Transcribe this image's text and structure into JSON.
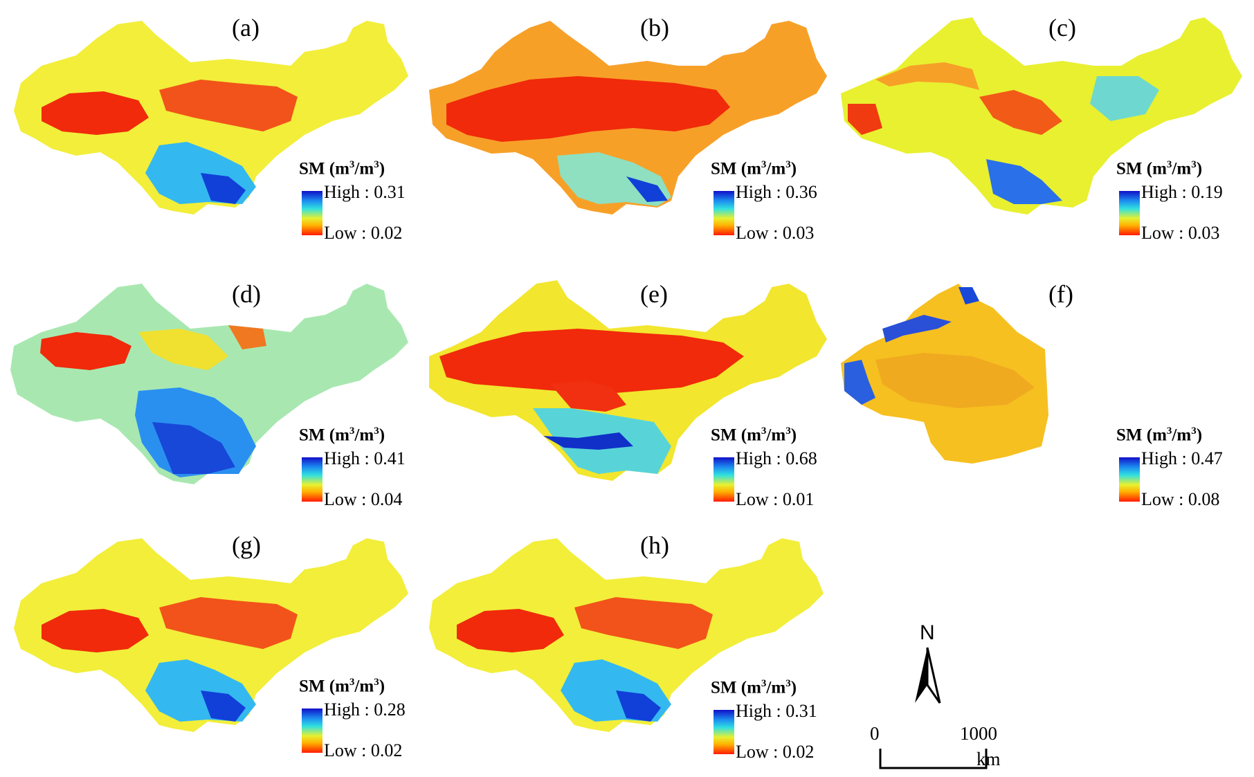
{
  "panels": [
    {
      "label": "(a)",
      "legend": {
        "title": "SM (m",
        "sup": "3",
        "mid": "/m",
        "sup2": "3",
        "close": ")",
        "high": "High : 0.31",
        "low": "Low : 0.02"
      }
    },
    {
      "label": "(b)",
      "legend": {
        "title": "SM (m",
        "sup": "3",
        "mid": "/m",
        "sup2": "3",
        "close": ")",
        "high": "High : 0.36",
        "low": "Low : 0.03"
      }
    },
    {
      "label": "(c)",
      "legend": {
        "title": "SM (m",
        "sup": "3",
        "mid": "/m",
        "sup2": "3",
        "close": ")",
        "high": "High : 0.19",
        "low": "Low : 0.03"
      }
    },
    {
      "label": "(d)",
      "legend": {
        "title": "SM (m",
        "sup": "3",
        "mid": "/m",
        "sup2": "3",
        "close": ")",
        "high": "High : 0.41",
        "low": "Low : 0.04"
      }
    },
    {
      "label": "(e)",
      "legend": {
        "title": "SM (m",
        "sup": "3",
        "mid": "/m",
        "sup2": "3",
        "close": ")",
        "high": "High : 0.68",
        "low": "Low : 0.01"
      }
    },
    {
      "label": "(f)",
      "legend": {
        "title": "SM (m",
        "sup": "3",
        "mid": "/m",
        "sup2": "3",
        "close": ")",
        "high": "High : 0.47",
        "low": "Low : 0.08"
      }
    },
    {
      "label": "(g)",
      "legend": {
        "title": "SM (m",
        "sup": "3",
        "mid": "/m",
        "sup2": "3",
        "close": ")",
        "high": "High : 0.28",
        "low": "Low : 0.02"
      }
    },
    {
      "label": "(h)",
      "legend": {
        "title": "SM (m",
        "sup": "3",
        "mid": "/m",
        "sup2": "3",
        "close": ")",
        "high": "High : 0.31",
        "low": "Low : 0.02"
      }
    }
  ],
  "north_arrow": {
    "letter": "N"
  },
  "scale_bar": {
    "start": "0",
    "end": "1000",
    "unit": "km"
  },
  "colors": {
    "high": "#1010c8",
    "mid_high": "#30e0e0",
    "mid": "#e8f030",
    "mid_low": "#ffb000",
    "low": "#ff1a00"
  }
}
